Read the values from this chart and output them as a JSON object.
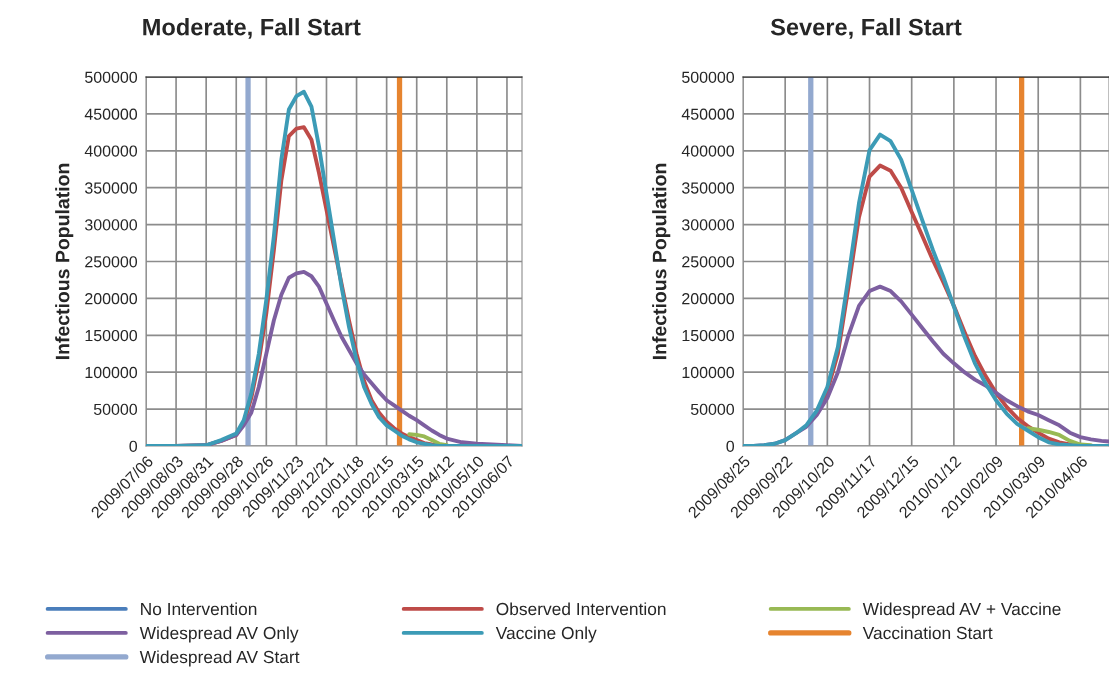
{
  "chart_data": [
    {
      "type": "line",
      "title": "Moderate, Fall Start",
      "ylabel": "Infectious Population",
      "legend": "bottom",
      "grid": true,
      "line_style": "solid",
      "marker": "none",
      "x": [
        "2009-07-06",
        "2009-08-03",
        "2009-08-31",
        "2009-09-14",
        "2009-09-28",
        "2009-10-05",
        "2009-10-12",
        "2009-10-19",
        "2009-10-26",
        "2009-11-02",
        "2009-11-09",
        "2009-11-16",
        "2009-11-23",
        "2009-11-30",
        "2009-12-07",
        "2009-12-14",
        "2009-12-21",
        "2009-12-28",
        "2010-01-04",
        "2010-01-11",
        "2010-01-18",
        "2010-01-25",
        "2010-02-01",
        "2010-02-08",
        "2010-02-15",
        "2010-02-22",
        "2010-03-01",
        "2010-03-08",
        "2010-03-15",
        "2010-03-22",
        "2010-03-29",
        "2010-04-05",
        "2010-04-12",
        "2010-04-26",
        "2010-05-10",
        "2010-06-07",
        "2010-06-21"
      ],
      "xlim": [
        "2009-07-06",
        "2010-06-21"
      ],
      "xticks": [
        {
          "value": "2009-07-06",
          "label": "2009/07/06"
        },
        {
          "value": "2009-08-03",
          "label": "2009/08/03"
        },
        {
          "value": "2009-08-31",
          "label": "2009/08/31"
        },
        {
          "value": "2009-09-28",
          "label": "2009/09/28"
        },
        {
          "value": "2009-10-26",
          "label": "2009/10/26"
        },
        {
          "value": "2009-11-23",
          "label": "2009/11/23"
        },
        {
          "value": "2009-12-21",
          "label": "2009/12/21"
        },
        {
          "value": "2010-01-18",
          "label": "2010/01/18"
        },
        {
          "value": "2010-02-15",
          "label": "2010/02/15"
        },
        {
          "value": "2010-03-15",
          "label": "2010/03/15"
        },
        {
          "value": "2010-04-12",
          "label": "2010/04/12"
        },
        {
          "value": "2010-05-10",
          "label": "2010/05/10"
        },
        {
          "value": "2010-06-07",
          "label": "2010/06/07"
        }
      ],
      "ylim": [
        0,
        500000
      ],
      "yticks": [
        0,
        50000,
        100000,
        150000,
        200000,
        250000,
        300000,
        350000,
        400000,
        450000,
        500000
      ],
      "series": [
        {
          "name": "No Intervention",
          "color": "#4a7ebb",
          "values": [
            null,
            null,
            null,
            null,
            null,
            null,
            null,
            null,
            null,
            null,
            null,
            null,
            null,
            null,
            null,
            null,
            null,
            null,
            null,
            null,
            null,
            null,
            null,
            null,
            null,
            null,
            null,
            null,
            null,
            null,
            null,
            null,
            null,
            null,
            null,
            null,
            null
          ]
        },
        {
          "name": "Observed Intervention",
          "color": "#be4b48",
          "values": [
            0,
            0,
            1000,
            7000,
            15000,
            32000,
            65000,
            115000,
            180000,
            265000,
            360000,
            420000,
            430000,
            432000,
            415000,
            370000,
            320000,
            270000,
            220000,
            170000,
            125000,
            88000,
            62000,
            45000,
            33000,
            24000,
            17000,
            12000,
            8000,
            4000,
            2000,
            1000,
            null,
            null,
            null,
            null,
            null
          ]
        },
        {
          "name": "Widespread AV + Vaccine",
          "color": "#98b954",
          "values": [
            null,
            null,
            null,
            null,
            null,
            null,
            null,
            null,
            null,
            null,
            null,
            null,
            null,
            null,
            null,
            null,
            null,
            null,
            null,
            null,
            null,
            null,
            null,
            null,
            null,
            null,
            null,
            16000,
            15000,
            13000,
            8000,
            3000,
            1000,
            null,
            null,
            null,
            null
          ]
        },
        {
          "name": "Widespread AV Only",
          "color": "#7d5fa0",
          "values": [
            0,
            0,
            1000,
            7000,
            15000,
            28000,
            45000,
            80000,
            125000,
            170000,
            205000,
            228000,
            234000,
            236000,
            230000,
            216000,
            193000,
            170000,
            148000,
            130000,
            112000,
            97000,
            85000,
            73000,
            62000,
            55000,
            48000,
            41000,
            35000,
            28000,
            21000,
            15000,
            10000,
            5000,
            3000,
            1000,
            0
          ]
        },
        {
          "name": "Vaccine Only",
          "color": "#3c9bb6",
          "values": [
            0,
            0,
            1000,
            8000,
            17000,
            35000,
            71000,
            125000,
            198000,
            284000,
            388000,
            456000,
            474000,
            480000,
            460000,
            406000,
            342000,
            279000,
            216000,
            161000,
            116000,
            80000,
            57000,
            39000,
            28000,
            21000,
            14000,
            9000,
            5000,
            3000,
            1000,
            0,
            0,
            0,
            0,
            0,
            0
          ]
        }
      ],
      "ref_lines": [
        {
          "axis": "x",
          "value": "2010-02-27",
          "label": "Vaccination Start",
          "color": "#e6842f"
        },
        {
          "axis": "x",
          "value": "2009-10-09",
          "label": "Widespread AV Start",
          "color": "#93a9cf"
        }
      ]
    },
    {
      "type": "line",
      "title": "Severe, Fall Start",
      "ylabel": "Infectious Population",
      "grid": true,
      "line_style": "solid",
      "marker": "none",
      "x": [
        "2009-08-25",
        "2009-09-01",
        "2009-09-08",
        "2009-09-15",
        "2009-09-22",
        "2009-09-29",
        "2009-10-06",
        "2009-10-13",
        "2009-10-20",
        "2009-10-27",
        "2009-11-03",
        "2009-11-10",
        "2009-11-17",
        "2009-11-24",
        "2009-12-01",
        "2009-12-08",
        "2009-12-15",
        "2009-12-22",
        "2009-12-29",
        "2010-01-05",
        "2010-01-12",
        "2010-01-19",
        "2010-01-26",
        "2010-02-02",
        "2010-02-09",
        "2010-02-16",
        "2010-02-23",
        "2010-03-02",
        "2010-03-09",
        "2010-03-16",
        "2010-03-23",
        "2010-03-30",
        "2010-04-06",
        "2010-04-13",
        "2010-04-20",
        "2010-04-25"
      ],
      "xlim": [
        "2009-08-25",
        "2010-04-25"
      ],
      "xticks": [
        {
          "value": "2009-08-25",
          "label": "2009/08/25"
        },
        {
          "value": "2009-09-22",
          "label": "2009/09/22"
        },
        {
          "value": "2009-10-20",
          "label": "2009/10/20"
        },
        {
          "value": "2009-11-17",
          "label": "2009/11/17"
        },
        {
          "value": "2009-12-15",
          "label": "2009/12/15"
        },
        {
          "value": "2010-01-12",
          "label": "2010/01/12"
        },
        {
          "value": "2010-02-09",
          "label": "2010/02/09"
        },
        {
          "value": "2010-03-09",
          "label": "2010/03/09"
        },
        {
          "value": "2010-04-06",
          "label": "2010/04/06"
        }
      ],
      "ylim": [
        0,
        500000
      ],
      "yticks": [
        0,
        50000,
        100000,
        150000,
        200000,
        250000,
        300000,
        350000,
        400000,
        450000,
        500000
      ],
      "series": [
        {
          "color": "#4a7ebb",
          "values": [
            null,
            null,
            null,
            null,
            null,
            null,
            null,
            null,
            null,
            null,
            null,
            null,
            null,
            null,
            null,
            null,
            null,
            null,
            null,
            null,
            null,
            null,
            null,
            null,
            null,
            null,
            null,
            null,
            null,
            null,
            null,
            null,
            null,
            null,
            null,
            null
          ]
        },
        {
          "color": "#be4b48",
          "values": [
            null,
            null,
            null,
            null,
            null,
            null,
            null,
            45000,
            75000,
            125000,
            215000,
            310000,
            365000,
            380000,
            373000,
            350000,
            317000,
            285000,
            252000,
            222000,
            190000,
            155000,
            122000,
            95000,
            72000,
            53000,
            38000,
            27000,
            18000,
            10000,
            5000,
            2000,
            0,
            null,
            null,
            null
          ]
        },
        {
          "color": "#98b954",
          "values": [
            null,
            null,
            null,
            null,
            null,
            null,
            null,
            null,
            null,
            null,
            null,
            null,
            null,
            null,
            null,
            null,
            null,
            null,
            null,
            null,
            null,
            null,
            null,
            null,
            null,
            null,
            null,
            24000,
            22000,
            19000,
            15000,
            7000,
            2000,
            1000,
            null,
            null
          ]
        },
        {
          "color": "#7d5fa0",
          "values": [
            0,
            0,
            1000,
            3000,
            8000,
            17000,
            26000,
            42000,
            65000,
            100000,
            150000,
            190000,
            210000,
            216000,
            210000,
            196000,
            178000,
            160000,
            142000,
            125000,
            112000,
            100000,
            90000,
            82000,
            72000,
            62000,
            54000,
            47000,
            42000,
            35000,
            28000,
            18000,
            12000,
            9000,
            7000,
            6000
          ]
        },
        {
          "color": "#3c9bb6",
          "values": [
            0,
            0,
            1000,
            3000,
            8000,
            17000,
            28000,
            48000,
            80000,
            134000,
            229000,
            329000,
            401000,
            422000,
            413000,
            388000,
            347000,
            306000,
            266000,
            229000,
            189000,
            148000,
            112000,
            85000,
            62000,
            44000,
            30000,
            21000,
            12000,
            5000,
            2000,
            1000,
            0,
            0,
            0,
            0
          ]
        }
      ],
      "ref_lines": [
        {
          "axis": "x",
          "value": "2010-02-26",
          "color": "#e6842f"
        },
        {
          "axis": "x",
          "value": "2009-10-09",
          "color": "#93a9cf"
        }
      ]
    }
  ]
}
